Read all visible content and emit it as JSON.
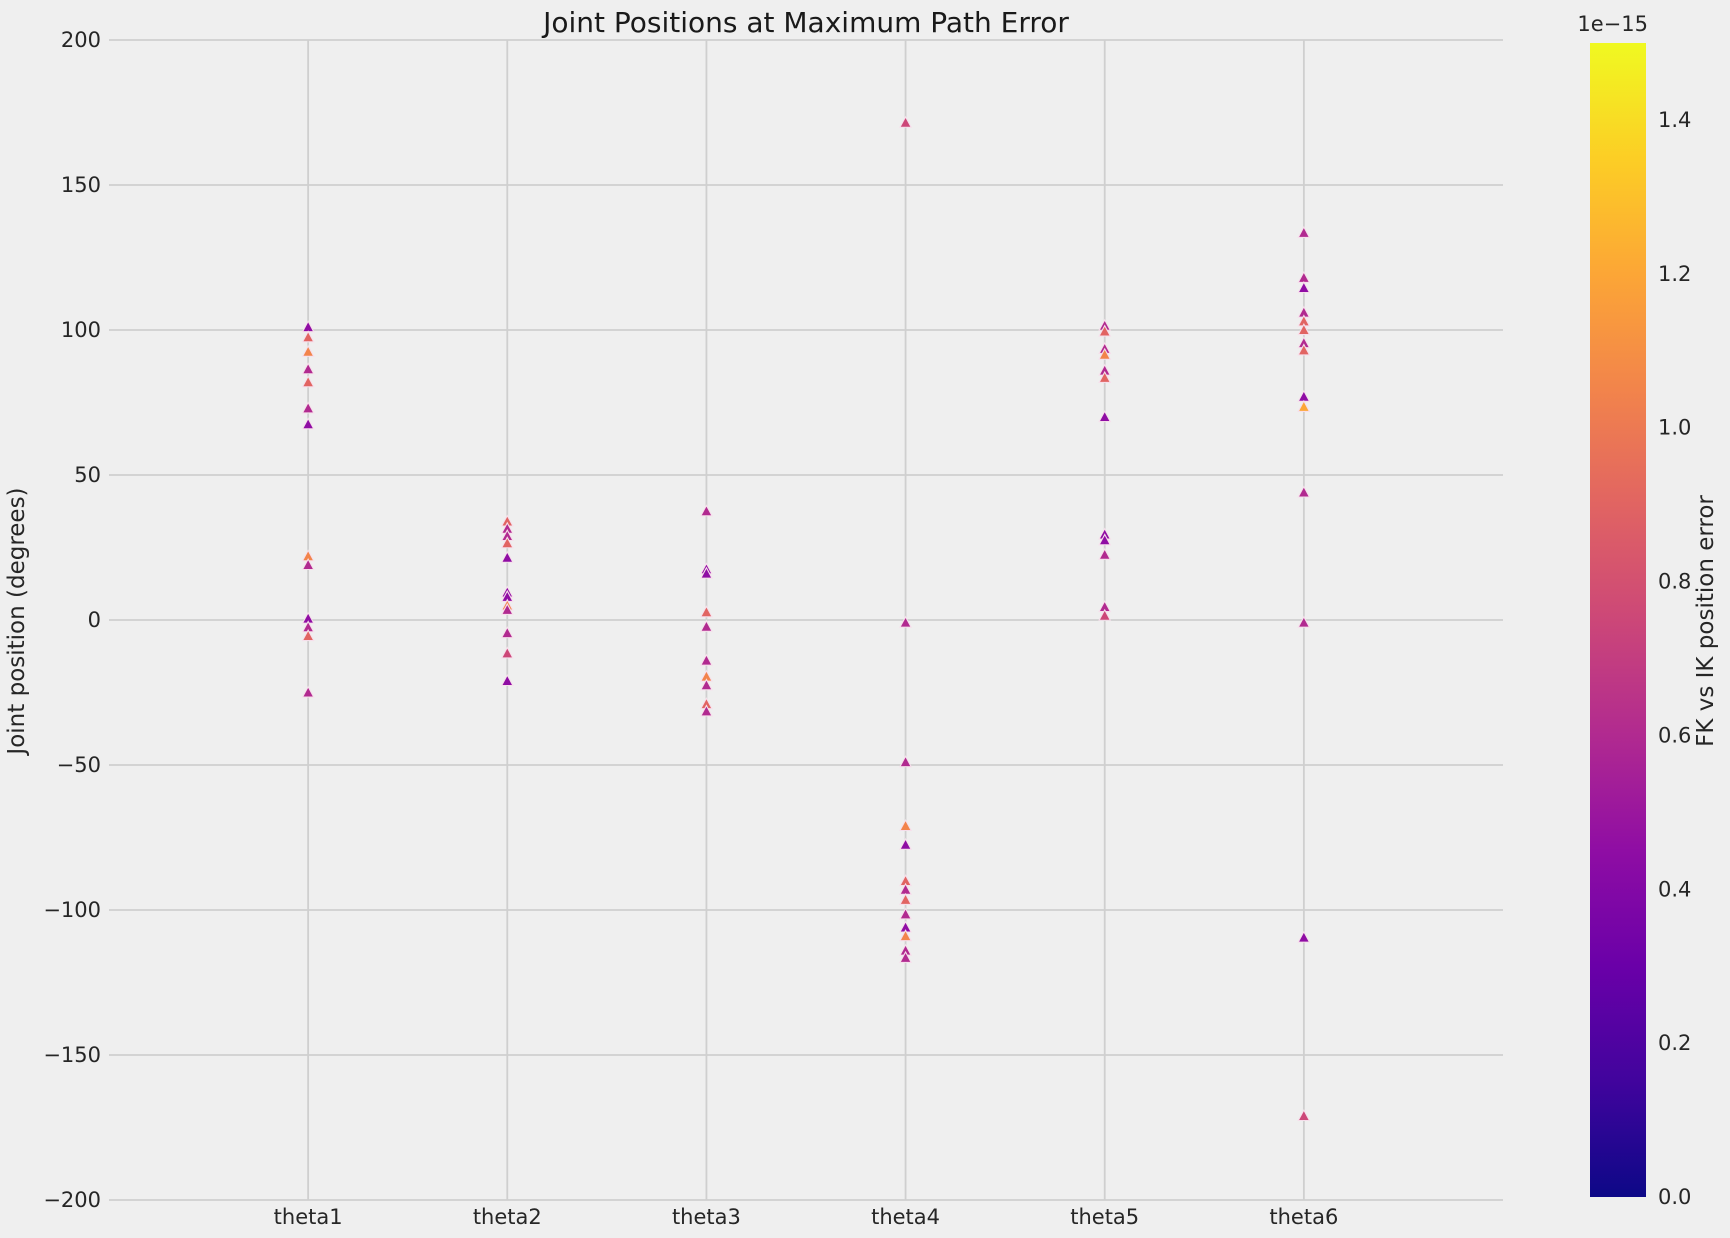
{
  "title": "Joint Positions at Maximum Path Error",
  "ylabel": "Joint position (degrees)",
  "colors": {
    "background": "#efefef",
    "grid": "#cfcfcf",
    "text": "#262626",
    "title_text": "#1a1a1a",
    "marker_edge": "#f6dfeb"
  },
  "colorbar": {
    "label": "FK vs IK position error",
    "scale_note": "1e−15",
    "tick_labels": [
      "0.0",
      "0.2",
      "0.4",
      "0.6",
      "0.8",
      "1.0",
      "1.2",
      "1.4"
    ],
    "tick_values": [
      0.0,
      0.2,
      0.4,
      0.6,
      0.8,
      1.0,
      1.2,
      1.4
    ],
    "range": [
      0.0,
      1.5
    ],
    "plasma_stops": [
      "#0d0887",
      "#41049d",
      "#6a00a8",
      "#8f0da4",
      "#b12a90",
      "#cc4778",
      "#e16462",
      "#f2844b",
      "#fca636",
      "#fcce25",
      "#f0f921"
    ]
  },
  "chart_data": {
    "type": "scatter",
    "marker": "triangle-up",
    "title": "Joint Positions at Maximum Path Error",
    "xlabel": "",
    "ylabel": "Joint position (degrees)",
    "categories": [
      "theta1",
      "theta2",
      "theta3",
      "theta4",
      "theta5",
      "theta6"
    ],
    "ylim": [
      -200,
      200
    ],
    "ytick_values": [
      200,
      150,
      100,
      50,
      0,
      -50,
      -100,
      -150,
      -200
    ],
    "ytick_labels": [
      "200",
      "150",
      "100",
      "50",
      "0",
      "−50",
      "−100",
      "−150",
      "−200"
    ],
    "grid": true,
    "legend": "none",
    "colormap": "plasma",
    "color_label": "FK vs IK position error",
    "color_scale_factor": "1e-15",
    "color_range_1e15": [
      0.0,
      1.5
    ],
    "series": [
      {
        "name": "theta1",
        "points": [
          {
            "y": 101,
            "error_1e15": 0.45,
            "color": "#8f0da4"
          },
          {
            "y": 97.5,
            "error_1e15": 0.9,
            "color": "#e16462"
          },
          {
            "y": 92.5,
            "error_1e15": 1.05,
            "color": "#f2844b"
          },
          {
            "y": 86.5,
            "error_1e15": 0.6,
            "color": "#b12a90"
          },
          {
            "y": 82,
            "error_1e15": 0.9,
            "color": "#e16462"
          },
          {
            "y": 73,
            "error_1e15": 0.6,
            "color": "#b12a90"
          },
          {
            "y": 67.5,
            "error_1e15": 0.45,
            "color": "#8f0da4"
          },
          {
            "y": 22,
            "error_1e15": 1.05,
            "color": "#f2844b"
          },
          {
            "y": 19,
            "error_1e15": 0.6,
            "color": "#b12a90"
          },
          {
            "y": 0.5,
            "error_1e15": 0.45,
            "color": "#8f0da4"
          },
          {
            "y": -2.5,
            "error_1e15": 0.6,
            "color": "#b12a90"
          },
          {
            "y": -5.5,
            "error_1e15": 0.9,
            "color": "#e16462"
          },
          {
            "y": -25,
            "error_1e15": 0.6,
            "color": "#b12a90"
          }
        ]
      },
      {
        "name": "theta2",
        "points": [
          {
            "y": 34,
            "error_1e15": 0.9,
            "color": "#e16462"
          },
          {
            "y": 31.5,
            "error_1e15": 0.6,
            "color": "#b12a90"
          },
          {
            "y": 29,
            "error_1e15": 0.6,
            "color": "#b12a90"
          },
          {
            "y": 26.5,
            "error_1e15": 0.9,
            "color": "#e16462"
          },
          {
            "y": 21.5,
            "error_1e15": 0.45,
            "color": "#8f0da4"
          },
          {
            "y": 9.5,
            "error_1e15": 0.45,
            "color": "#8f0da4"
          },
          {
            "y": 8,
            "error_1e15": 0.45,
            "color": "#8f0da4"
          },
          {
            "y": 5,
            "error_1e15": 1.05,
            "color": "#f2844b"
          },
          {
            "y": 3.5,
            "error_1e15": 0.6,
            "color": "#b12a90"
          },
          {
            "y": -4.5,
            "error_1e15": 0.6,
            "color": "#b12a90"
          },
          {
            "y": -11.5,
            "error_1e15": 0.75,
            "color": "#cc4778"
          },
          {
            "y": -21,
            "error_1e15": 0.45,
            "color": "#8f0da4"
          }
        ]
      },
      {
        "name": "theta3",
        "points": [
          {
            "y": 37.5,
            "error_1e15": 0.6,
            "color": "#b12a90"
          },
          {
            "y": 17.5,
            "error_1e15": 0.45,
            "color": "#8f0da4"
          },
          {
            "y": 16,
            "error_1e15": 0.45,
            "color": "#8f0da4"
          },
          {
            "y": 2.7,
            "error_1e15": 0.9,
            "color": "#e16462"
          },
          {
            "y": -2.3,
            "error_1e15": 0.6,
            "color": "#b12a90"
          },
          {
            "y": -14,
            "error_1e15": 0.6,
            "color": "#b12a90"
          },
          {
            "y": -19.5,
            "error_1e15": 1.05,
            "color": "#f2844b"
          },
          {
            "y": -22.5,
            "error_1e15": 0.6,
            "color": "#b12a90"
          },
          {
            "y": -29,
            "error_1e15": 0.9,
            "color": "#e16462"
          },
          {
            "y": -31.5,
            "error_1e15": 0.6,
            "color": "#b12a90"
          }
        ]
      },
      {
        "name": "theta4",
        "points": [
          {
            "y": 171.5,
            "error_1e15": 0.75,
            "color": "#cc4778"
          },
          {
            "y": -0.9,
            "error_1e15": 0.6,
            "color": "#b12a90"
          },
          {
            "y": -49,
            "error_1e15": 0.6,
            "color": "#b12a90"
          },
          {
            "y": -71,
            "error_1e15": 1.05,
            "color": "#f2844b"
          },
          {
            "y": -77.5,
            "error_1e15": 0.45,
            "color": "#8f0da4"
          },
          {
            "y": -90,
            "error_1e15": 0.9,
            "color": "#e16462"
          },
          {
            "y": -93,
            "error_1e15": 0.6,
            "color": "#b12a90"
          },
          {
            "y": -96.5,
            "error_1e15": 0.9,
            "color": "#e16462"
          },
          {
            "y": -101.5,
            "error_1e15": 0.6,
            "color": "#b12a90"
          },
          {
            "y": -106,
            "error_1e15": 0.45,
            "color": "#8f0da4"
          },
          {
            "y": -109,
            "error_1e15": 1.05,
            "color": "#f2844b"
          },
          {
            "y": -114,
            "error_1e15": 0.6,
            "color": "#b12a90"
          },
          {
            "y": -116.5,
            "error_1e15": 0.6,
            "color": "#b12a90"
          }
        ]
      },
      {
        "name": "theta5",
        "points": [
          {
            "y": 101.5,
            "error_1e15": 0.6,
            "color": "#b12a90"
          },
          {
            "y": 99.5,
            "error_1e15": 0.9,
            "color": "#e16462"
          },
          {
            "y": 93.5,
            "error_1e15": 0.6,
            "color": "#b12a90"
          },
          {
            "y": 91.5,
            "error_1e15": 1.05,
            "color": "#f2844b"
          },
          {
            "y": 86,
            "error_1e15": 0.6,
            "color": "#b12a90"
          },
          {
            "y": 83.5,
            "error_1e15": 0.9,
            "color": "#e16462"
          },
          {
            "y": 70,
            "error_1e15": 0.45,
            "color": "#8f0da4"
          },
          {
            "y": 29.5,
            "error_1e15": 0.45,
            "color": "#8f0da4"
          },
          {
            "y": 27.5,
            "error_1e15": 0.45,
            "color": "#8f0da4"
          },
          {
            "y": 22.5,
            "error_1e15": 0.6,
            "color": "#b12a90"
          },
          {
            "y": 4.5,
            "error_1e15": 0.6,
            "color": "#b12a90"
          },
          {
            "y": 1.5,
            "error_1e15": 0.75,
            "color": "#cc4778"
          }
        ]
      },
      {
        "name": "theta6",
        "points": [
          {
            "y": 133.5,
            "error_1e15": 0.6,
            "color": "#b12a90"
          },
          {
            "y": 118,
            "error_1e15": 0.6,
            "color": "#b12a90"
          },
          {
            "y": 114.5,
            "error_1e15": 0.45,
            "color": "#8f0da4"
          },
          {
            "y": 106,
            "error_1e15": 0.6,
            "color": "#b12a90"
          },
          {
            "y": 103,
            "error_1e15": 0.9,
            "color": "#e16462"
          },
          {
            "y": 100,
            "error_1e15": 0.9,
            "color": "#e16462"
          },
          {
            "y": 95.5,
            "error_1e15": 0.6,
            "color": "#b12a90"
          },
          {
            "y": 93,
            "error_1e15": 0.9,
            "color": "#e16462"
          },
          {
            "y": 77,
            "error_1e15": 0.45,
            "color": "#8f0da4"
          },
          {
            "y": 73.5,
            "error_1e15": 1.2,
            "color": "#fca636"
          },
          {
            "y": 44,
            "error_1e15": 0.6,
            "color": "#b12a90"
          },
          {
            "y": -0.9,
            "error_1e15": 0.6,
            "color": "#b12a90"
          },
          {
            "y": -109.5,
            "error_1e15": 0.45,
            "color": "#8f0da4"
          },
          {
            "y": -171,
            "error_1e15": 0.75,
            "color": "#cc4778"
          }
        ]
      }
    ]
  }
}
